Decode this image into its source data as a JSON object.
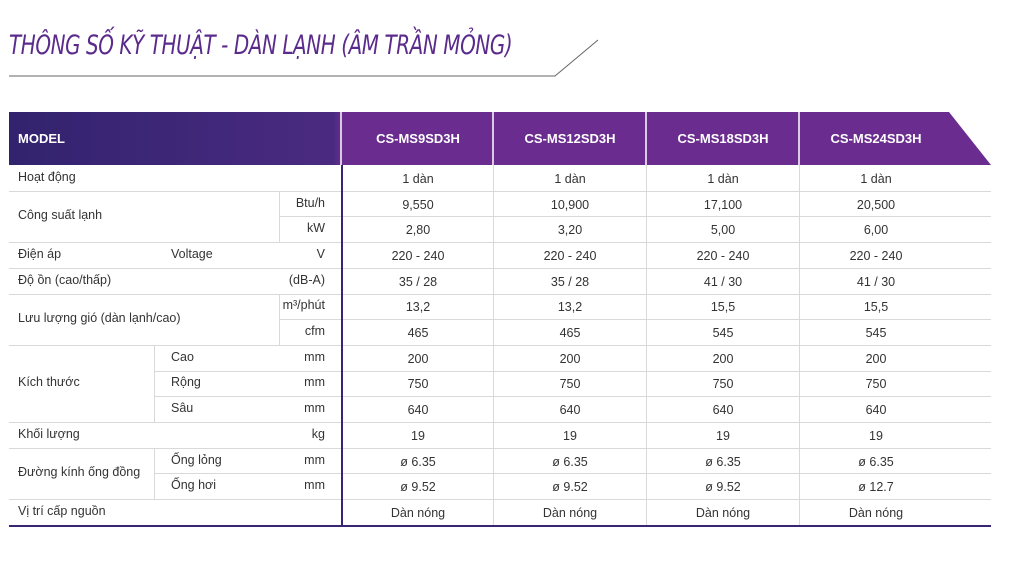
{
  "title": "THÔNG SỐ KỸ THUẬT - DÀN LẠNH (ÂM TRẦN MỎNG)",
  "colors": {
    "brand": "#6a2d8f",
    "header_dark": "#3a2474",
    "title": "#5b2b8c"
  },
  "header": {
    "model_label": "MODEL",
    "models": [
      "CS-MS9SD3H",
      "CS-MS12SD3H",
      "CS-MS18SD3H",
      "CS-MS24SD3H"
    ]
  },
  "rows": [
    {
      "label": "Hoạt động",
      "sub": "",
      "unit": "",
      "values": [
        "1 dàn",
        "1 dàn",
        "1 dàn",
        "1 dàn"
      ]
    },
    {
      "label": "Công suất lạnh",
      "sub": "",
      "unit": "Btu/h",
      "values": [
        "9,550",
        "10,900",
        "17,100",
        "20,500"
      ]
    },
    {
      "label": "",
      "sub": "",
      "unit": "kW",
      "values": [
        "2,80",
        "3,20",
        "5,00",
        "6,00"
      ]
    },
    {
      "label": "Điện áp",
      "sub": "Voltage",
      "unit": "V",
      "values": [
        "220 - 240",
        "220 - 240",
        "220 - 240",
        "220 - 240"
      ]
    },
    {
      "label": "Độ ồn (cao/thấp)",
      "sub": "",
      "unit": "(dB-A)",
      "values": [
        "35 / 28",
        "35 / 28",
        "41 / 30",
        "41 / 30"
      ]
    },
    {
      "label": "Lưu lượng gió (dàn lạnh/cao)",
      "sub": "",
      "unit": "m³/phút",
      "values": [
        "13,2",
        "13,2",
        "15,5",
        "15,5"
      ]
    },
    {
      "label": "",
      "sub": "",
      "unit": "cfm",
      "values": [
        "465",
        "465",
        "545",
        "545"
      ]
    },
    {
      "label": "Kích thước",
      "sub": "Cao",
      "unit": "mm",
      "values": [
        "200",
        "200",
        "200",
        "200"
      ]
    },
    {
      "label": "",
      "sub": "Rộng",
      "unit": "mm",
      "values": [
        "750",
        "750",
        "750",
        "750"
      ]
    },
    {
      "label": "",
      "sub": "Sâu",
      "unit": "mm",
      "values": [
        "640",
        "640",
        "640",
        "640"
      ]
    },
    {
      "label": "Khối lượng",
      "sub": "",
      "unit": "kg",
      "values": [
        "19",
        "19",
        "19",
        "19"
      ]
    },
    {
      "label": "Đường kính ống đồng",
      "sub": "Ống lỏng",
      "unit": "mm",
      "values": [
        "ø 6.35",
        "ø 6.35",
        "ø 6.35",
        "ø 6.35"
      ]
    },
    {
      "label": "",
      "sub": "Ống hơi",
      "unit": "mm",
      "values": [
        "ø 9.52",
        "ø 9.52",
        "ø 9.52",
        "ø 12.7"
      ]
    },
    {
      "label": "Vị trí cấp nguồn",
      "sub": "",
      "unit": "",
      "values": [
        "Dàn nóng",
        "Dàn nóng",
        "Dàn nóng",
        "Dàn nóng"
      ]
    }
  ]
}
